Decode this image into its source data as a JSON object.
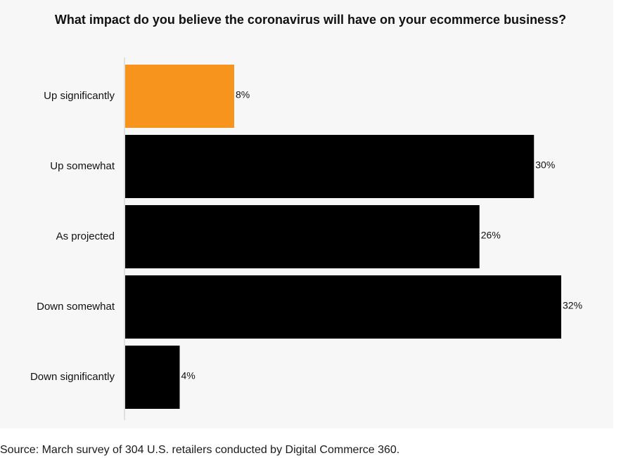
{
  "chart_data": {
    "type": "bar",
    "orientation": "horizontal",
    "title": "What impact do you believe the coronavirus will have on your ecommerce business?",
    "categories": [
      "Up significantly",
      "Up somewhat",
      "As projected",
      "Down somewhat",
      "Down significantly"
    ],
    "values": [
      8,
      30,
      26,
      32,
      4
    ],
    "value_labels": [
      "8%",
      "30%",
      "26%",
      "32%",
      "4%"
    ],
    "unit": "%",
    "xlim": [
      0,
      32
    ],
    "bar_colors": [
      "#f7941d",
      "#000000",
      "#000000",
      "#000000",
      "#000000"
    ],
    "xlabel": "",
    "ylabel": ""
  },
  "source": "Source: March survey of 304 U.S. retailers conducted by Digital Commerce 360."
}
